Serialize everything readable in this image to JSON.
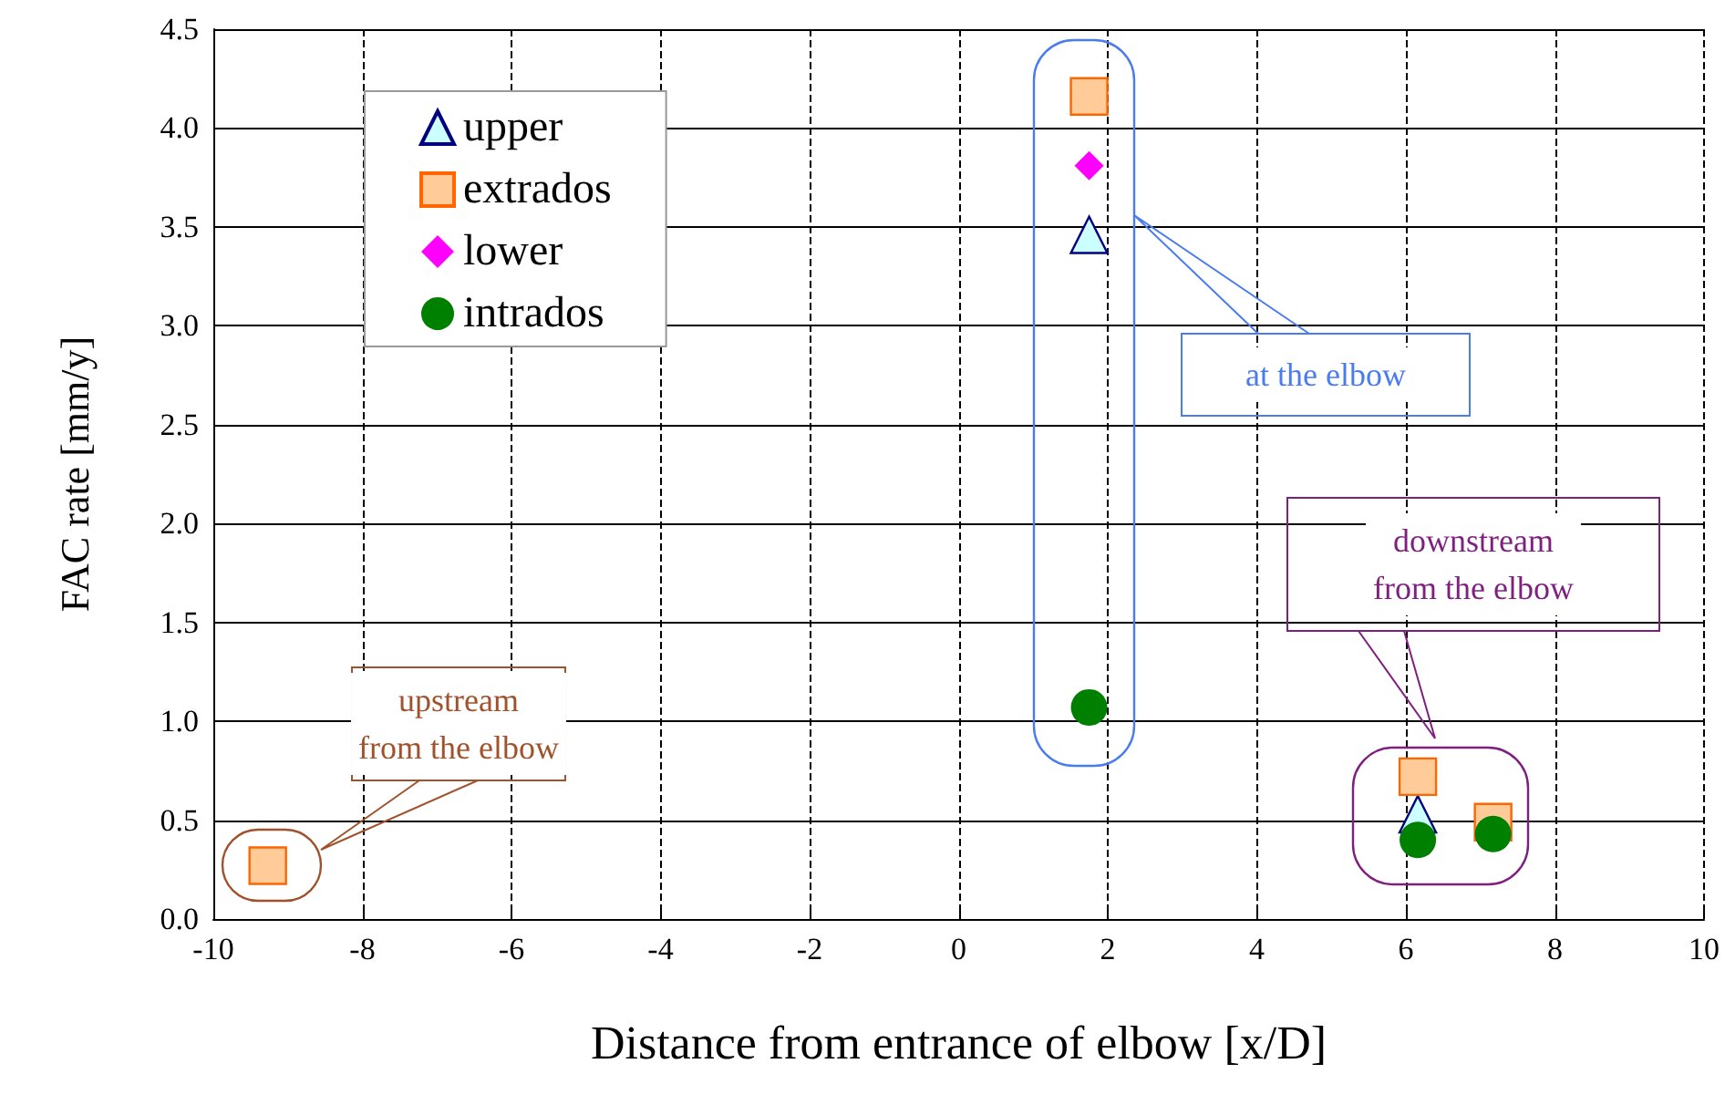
{
  "chart_data": {
    "type": "scatter",
    "xlabel": "Distance from entrance of elbow [x/D]",
    "ylabel": "FAC rate [mm/y]",
    "xlim": [
      -10,
      10
    ],
    "xticks": [
      -10,
      -8,
      -6,
      -4,
      -2,
      0,
      2,
      4,
      6,
      8,
      10
    ],
    "ylim": [
      0,
      4.5
    ],
    "yticks": [
      {
        "value": 0,
        "label": "0.0"
      },
      0.5,
      {
        "value": 1,
        "label": "1.0"
      },
      1.5,
      {
        "value": 2,
        "label": "2.0"
      },
      2.5,
      {
        "value": 3,
        "label": "3.0"
      },
      3.5,
      {
        "value": 4,
        "label": "4.0"
      },
      4.5
    ],
    "grid": true,
    "legend": "top left",
    "series": [
      {
        "name": "upper",
        "color": "#ccffff",
        "marker": "triangle",
        "x": [
          1.75,
          6.16
        ],
        "values": [
          3.46,
          0.53
        ]
      },
      {
        "name": "extrados",
        "color": "#ffcc99",
        "marker": "square",
        "x": [
          -9.27,
          1.75,
          6.16,
          7.17
        ],
        "values": [
          0.27,
          4.16,
          0.72,
          0.49
        ]
      },
      {
        "name": "lower",
        "color": "#ff00ff",
        "marker": "diamond",
        "x": [
          1.75
        ],
        "values": [
          3.81
        ]
      },
      {
        "name": "intrados",
        "color": "#008000",
        "marker": "circle",
        "x": [
          1.75,
          6.16,
          7.17
        ],
        "values": [
          1.07,
          0.4,
          0.43
        ]
      }
    ],
    "annotations": [
      "upstream\nfrom the elbow",
      "at the elbow",
      "downstream\nfrom the elbow"
    ]
  }
}
